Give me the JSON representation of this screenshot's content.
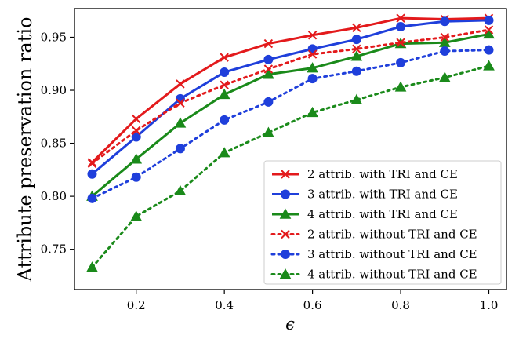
{
  "chart_data": {
    "type": "line",
    "title": "",
    "xlabel": "ϵ",
    "ylabel": "Attribute preservation ratio",
    "x": [
      0.1,
      0.2,
      0.3,
      0.4,
      0.5,
      0.6,
      0.7,
      0.8,
      0.9,
      1.0
    ],
    "xlim": [
      0.06,
      1.04
    ],
    "ylim": [
      0.712,
      0.977
    ],
    "xticks": [
      0.2,
      0.4,
      0.6,
      0.8,
      1.0
    ],
    "xtick_labels": [
      "0.2",
      "0.4",
      "0.6",
      "0.8",
      "1.0"
    ],
    "yticks": [
      0.75,
      0.8,
      0.85,
      0.9,
      0.95
    ],
    "ytick_labels": [
      "0.75",
      "0.80",
      "0.85",
      "0.90",
      "0.95"
    ],
    "grid": false,
    "legend_position": "lower-right",
    "series": [
      {
        "name": "2 attrib. with TRI and CE",
        "color": "#e31a1c",
        "linestyle": "solid",
        "marker": "x",
        "values": [
          0.832,
          0.873,
          0.906,
          0.931,
          0.944,
          0.952,
          0.959,
          0.968,
          0.967,
          0.968
        ]
      },
      {
        "name": "3 attrib. with TRI and CE",
        "color": "#1f3fdb",
        "linestyle": "solid",
        "marker": "circle",
        "values": [
          0.821,
          0.856,
          0.892,
          0.917,
          0.929,
          0.939,
          0.948,
          0.96,
          0.965,
          0.966
        ]
      },
      {
        "name": "4 attrib. with TRI and CE",
        "color": "#1a8a1a",
        "linestyle": "solid",
        "marker": "triangle",
        "values": [
          0.8,
          0.835,
          0.869,
          0.896,
          0.915,
          0.921,
          0.932,
          0.944,
          0.945,
          0.953
        ]
      },
      {
        "name": "2 attrib. without TRI and CE",
        "color": "#e31a1c",
        "linestyle": "dotted",
        "marker": "x",
        "values": [
          0.831,
          0.862,
          0.888,
          0.905,
          0.92,
          0.934,
          0.939,
          0.945,
          0.95,
          0.957
        ]
      },
      {
        "name": "3 attrib. without TRI and CE",
        "color": "#1f3fdb",
        "linestyle": "dotted",
        "marker": "circle",
        "values": [
          0.798,
          0.818,
          0.845,
          0.872,
          0.889,
          0.911,
          0.918,
          0.926,
          0.937,
          0.938
        ]
      },
      {
        "name": "4 attrib. without TRI and CE",
        "color": "#1a8a1a",
        "linestyle": "dotted",
        "marker": "triangle",
        "values": [
          0.733,
          0.781,
          0.805,
          0.841,
          0.86,
          0.879,
          0.891,
          0.903,
          0.912,
          0.923
        ]
      }
    ]
  }
}
